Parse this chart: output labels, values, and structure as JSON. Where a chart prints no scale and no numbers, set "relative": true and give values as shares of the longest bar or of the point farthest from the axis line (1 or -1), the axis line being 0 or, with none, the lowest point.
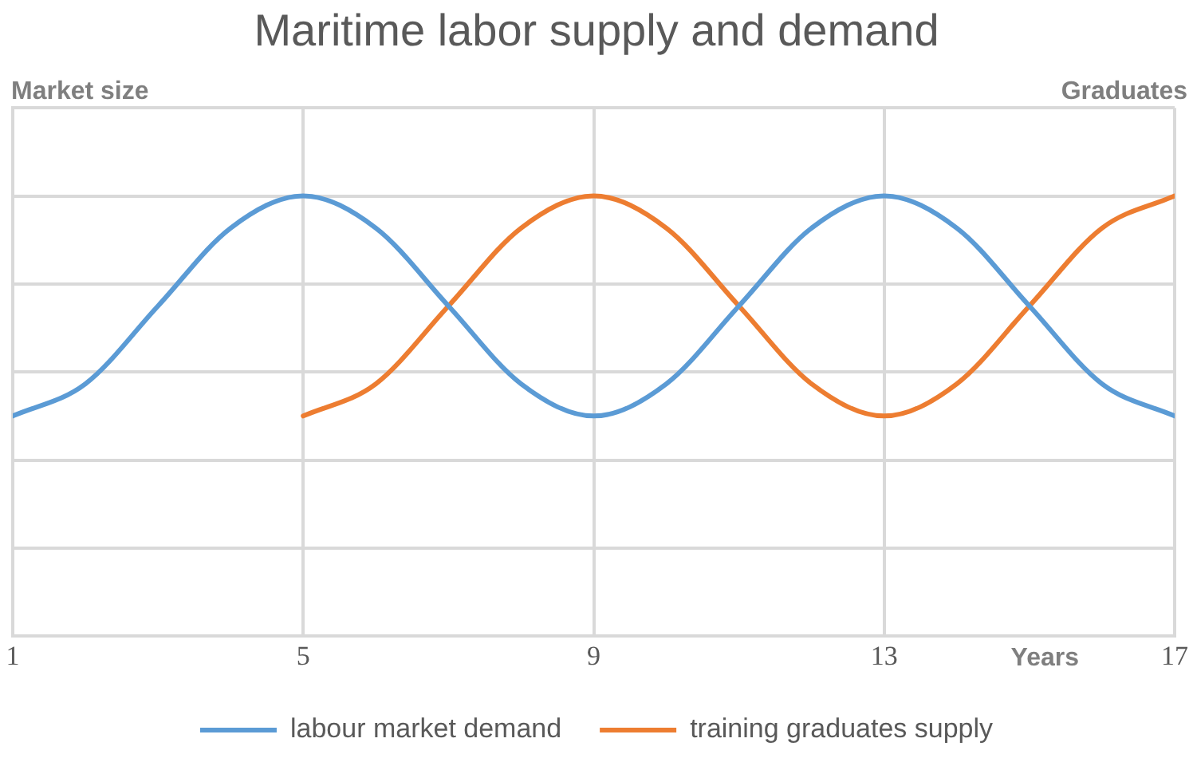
{
  "chart_data": {
    "type": "line",
    "title": "Maritime labor supply and demand",
    "ylabel": "Market size",
    "y2label": "Graduates",
    "xlabel": "Years",
    "relative": true,
    "x": [
      1,
      2,
      3,
      4,
      5,
      6,
      7,
      8,
      9,
      10,
      11,
      12,
      13,
      14,
      15,
      16,
      17
    ],
    "xlim": [
      1,
      17
    ],
    "xticks": [
      1,
      5,
      9,
      13,
      17
    ],
    "series": [
      {
        "name": "labour market demand",
        "color": "#5b9bd5",
        "values": [
          0.5,
          0.573,
          0.75,
          0.927,
          1,
          0.927,
          0.75,
          0.573,
          0.5,
          0.573,
          0.75,
          0.927,
          1,
          0.927,
          0.75,
          0.573,
          0.5
        ]
      },
      {
        "name": "training graduates supply",
        "color": "#ed7d31",
        "values": [
          null,
          null,
          null,
          null,
          0.5,
          0.573,
          0.75,
          0.927,
          1,
          0.927,
          0.75,
          0.573,
          0.5,
          0.573,
          0.75,
          0.927,
          1
        ]
      }
    ],
    "grid": true,
    "legend": "bottom",
    "marker": "none",
    "line_style": "solid"
  }
}
